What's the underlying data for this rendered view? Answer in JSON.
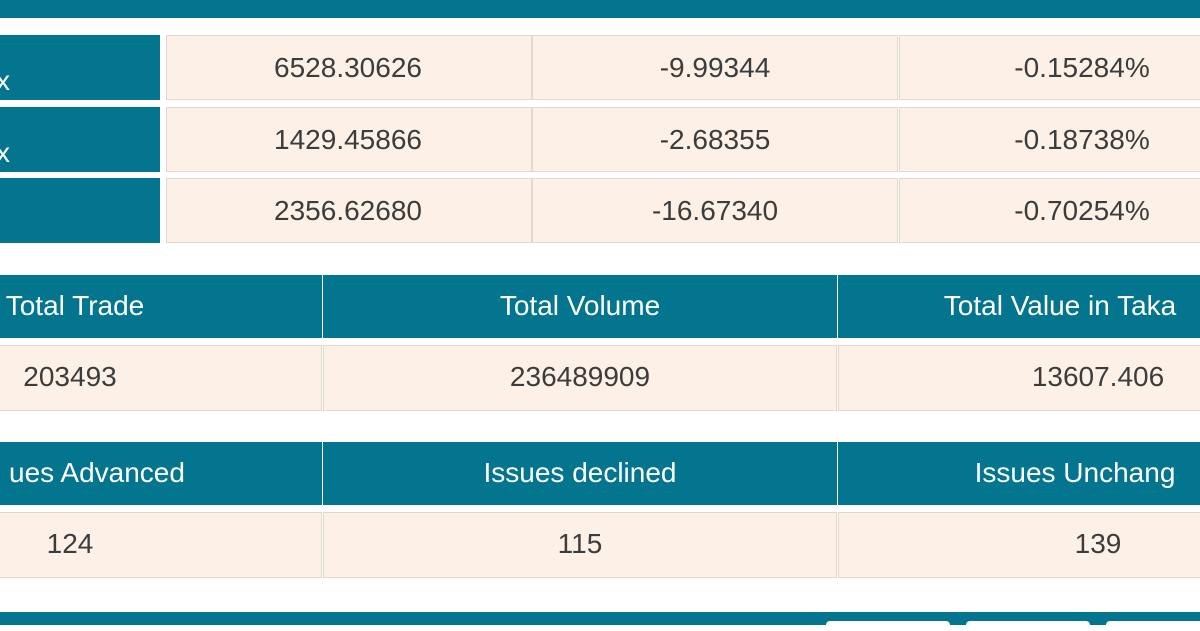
{
  "index_table": {
    "rows": [
      {
        "label": "x",
        "cells": [
          "6528.30626",
          "-9.99344",
          "-0.15284%"
        ]
      },
      {
        "label": "x",
        "cells": [
          "1429.45866",
          "-2.68355",
          "-0.18738%"
        ]
      },
      {
        "cells": [
          "2356.62680",
          "-16.67340",
          "-0.70254%"
        ]
      }
    ]
  },
  "trade_table": {
    "headers": [
      "Total Trade",
      "Total Volume",
      "Total Value in Taka"
    ],
    "values": [
      "203493",
      "236489909",
      "13607.406"
    ]
  },
  "issues_table": {
    "headers": [
      "ues Advanced",
      "Issues declined",
      "Issues Unchang"
    ],
    "values": [
      "124",
      "115",
      "139"
    ]
  }
}
